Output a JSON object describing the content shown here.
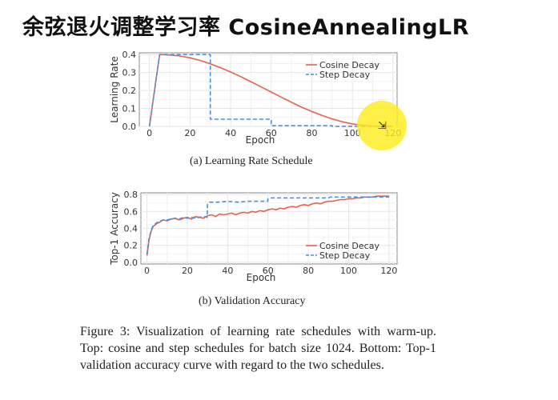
{
  "slide": {
    "title": "余弦退火调整学习率 CosineAnnealingLR"
  },
  "chart_data": [
    {
      "type": "line",
      "caption": "(a) Learning Rate Schedule",
      "xlabel": "Epoch",
      "ylabel": "Learning Rate",
      "xlim": [
        -5,
        122
      ],
      "ylim": [
        0,
        0.41
      ],
      "xticks": [
        0,
        20,
        40,
        60,
        80,
        100,
        120
      ],
      "yticks": [
        0.0,
        0.1,
        0.2,
        0.3,
        0.4
      ],
      "ytick_labels": [
        "0.0",
        "0.1",
        "0.2",
        "0.3",
        "0.4"
      ],
      "grid": true,
      "legend_position": "top-right",
      "series": [
        {
          "name": "Cosine Decay",
          "color": "#e8604c",
          "style": "solid",
          "x": [
            0,
            1,
            2,
            3,
            4,
            5,
            10,
            15,
            20,
            25,
            30,
            35,
            40,
            45,
            50,
            55,
            60,
            65,
            70,
            75,
            80,
            85,
            90,
            95,
            100,
            105,
            110,
            115,
            120
          ],
          "y": [
            0.0,
            0.08,
            0.16,
            0.24,
            0.32,
            0.4,
            0.398,
            0.392,
            0.382,
            0.367,
            0.349,
            0.327,
            0.303,
            0.277,
            0.249,
            0.22,
            0.191,
            0.162,
            0.134,
            0.107,
            0.083,
            0.061,
            0.042,
            0.026,
            0.014,
            0.006,
            0.002,
            0.0005,
            0.0
          ]
        },
        {
          "name": "Step Decay",
          "color": "#4a8fd8",
          "style": "dashed",
          "x": [
            0,
            5,
            30,
            30,
            60,
            60,
            90,
            90,
            120
          ],
          "y": [
            0.0,
            0.4,
            0.4,
            0.04,
            0.04,
            0.004,
            0.004,
            0.0004,
            0.0004
          ]
        }
      ]
    },
    {
      "type": "line",
      "caption": "(b) Validation Accuracy",
      "xlabel": "Epoch",
      "ylabel": "Top-1 Accuracy",
      "xlim": [
        -3,
        124
      ],
      "ylim": [
        -0.02,
        0.82
      ],
      "xticks": [
        0,
        20,
        40,
        60,
        80,
        100,
        120
      ],
      "yticks": [
        0.0,
        0.2,
        0.4,
        0.6,
        0.8
      ],
      "ytick_labels": [
        "0.0",
        "0.2",
        "0.4",
        "0.6",
        "0.8"
      ],
      "grid": true,
      "legend_position": "bottom-right",
      "series": [
        {
          "name": "Cosine Decay",
          "color": "#e8604c",
          "style": "solid",
          "x": [
            0,
            1,
            2,
            3,
            4,
            5,
            6,
            8,
            10,
            12,
            14,
            16,
            18,
            20,
            22,
            24,
            26,
            28,
            30,
            32,
            34,
            36,
            38,
            40,
            42,
            44,
            46,
            48,
            50,
            52,
            54,
            56,
            58,
            60,
            62,
            64,
            66,
            68,
            70,
            72,
            74,
            76,
            78,
            80,
            82,
            84,
            86,
            88,
            90,
            92,
            94,
            96,
            98,
            100,
            102,
            104,
            106,
            108,
            110,
            112,
            114,
            116,
            118,
            120
          ],
          "y": [
            0.08,
            0.26,
            0.36,
            0.42,
            0.44,
            0.46,
            0.47,
            0.5,
            0.49,
            0.51,
            0.52,
            0.5,
            0.52,
            0.53,
            0.51,
            0.54,
            0.53,
            0.52,
            0.55,
            0.56,
            0.54,
            0.57,
            0.56,
            0.57,
            0.58,
            0.56,
            0.58,
            0.59,
            0.58,
            0.6,
            0.59,
            0.61,
            0.6,
            0.62,
            0.63,
            0.62,
            0.64,
            0.63,
            0.65,
            0.66,
            0.65,
            0.67,
            0.68,
            0.67,
            0.69,
            0.7,
            0.69,
            0.71,
            0.72,
            0.72,
            0.73,
            0.74,
            0.74,
            0.75,
            0.75,
            0.76,
            0.76,
            0.77,
            0.77,
            0.77,
            0.78,
            0.78,
            0.78,
            0.78
          ]
        },
        {
          "name": "Step Decay",
          "color": "#4a8fd8",
          "style": "dashed",
          "x": [
            0,
            1,
            2,
            3,
            4,
            5,
            6,
            8,
            10,
            12,
            14,
            16,
            18,
            20,
            22,
            24,
            26,
            28,
            29.9,
            30,
            31,
            35,
            40,
            45,
            50,
            55,
            59.9,
            60,
            61,
            70,
            80,
            90,
            91,
            100,
            110,
            120
          ],
          "y": [
            0.09,
            0.28,
            0.37,
            0.43,
            0.45,
            0.47,
            0.48,
            0.5,
            0.5,
            0.51,
            0.52,
            0.51,
            0.53,
            0.52,
            0.53,
            0.52,
            0.53,
            0.54,
            0.53,
            0.68,
            0.71,
            0.71,
            0.72,
            0.71,
            0.72,
            0.72,
            0.72,
            0.75,
            0.76,
            0.76,
            0.76,
            0.76,
            0.77,
            0.77,
            0.77,
            0.77
          ]
        }
      ]
    }
  ],
  "figure_caption": "Figure 3: Visualization of learning rate schedules with warm-up. Top: cosine and step schedules for batch size 1024. Bottom: Top-1 validation accuracy curve with regard to the two schedules."
}
